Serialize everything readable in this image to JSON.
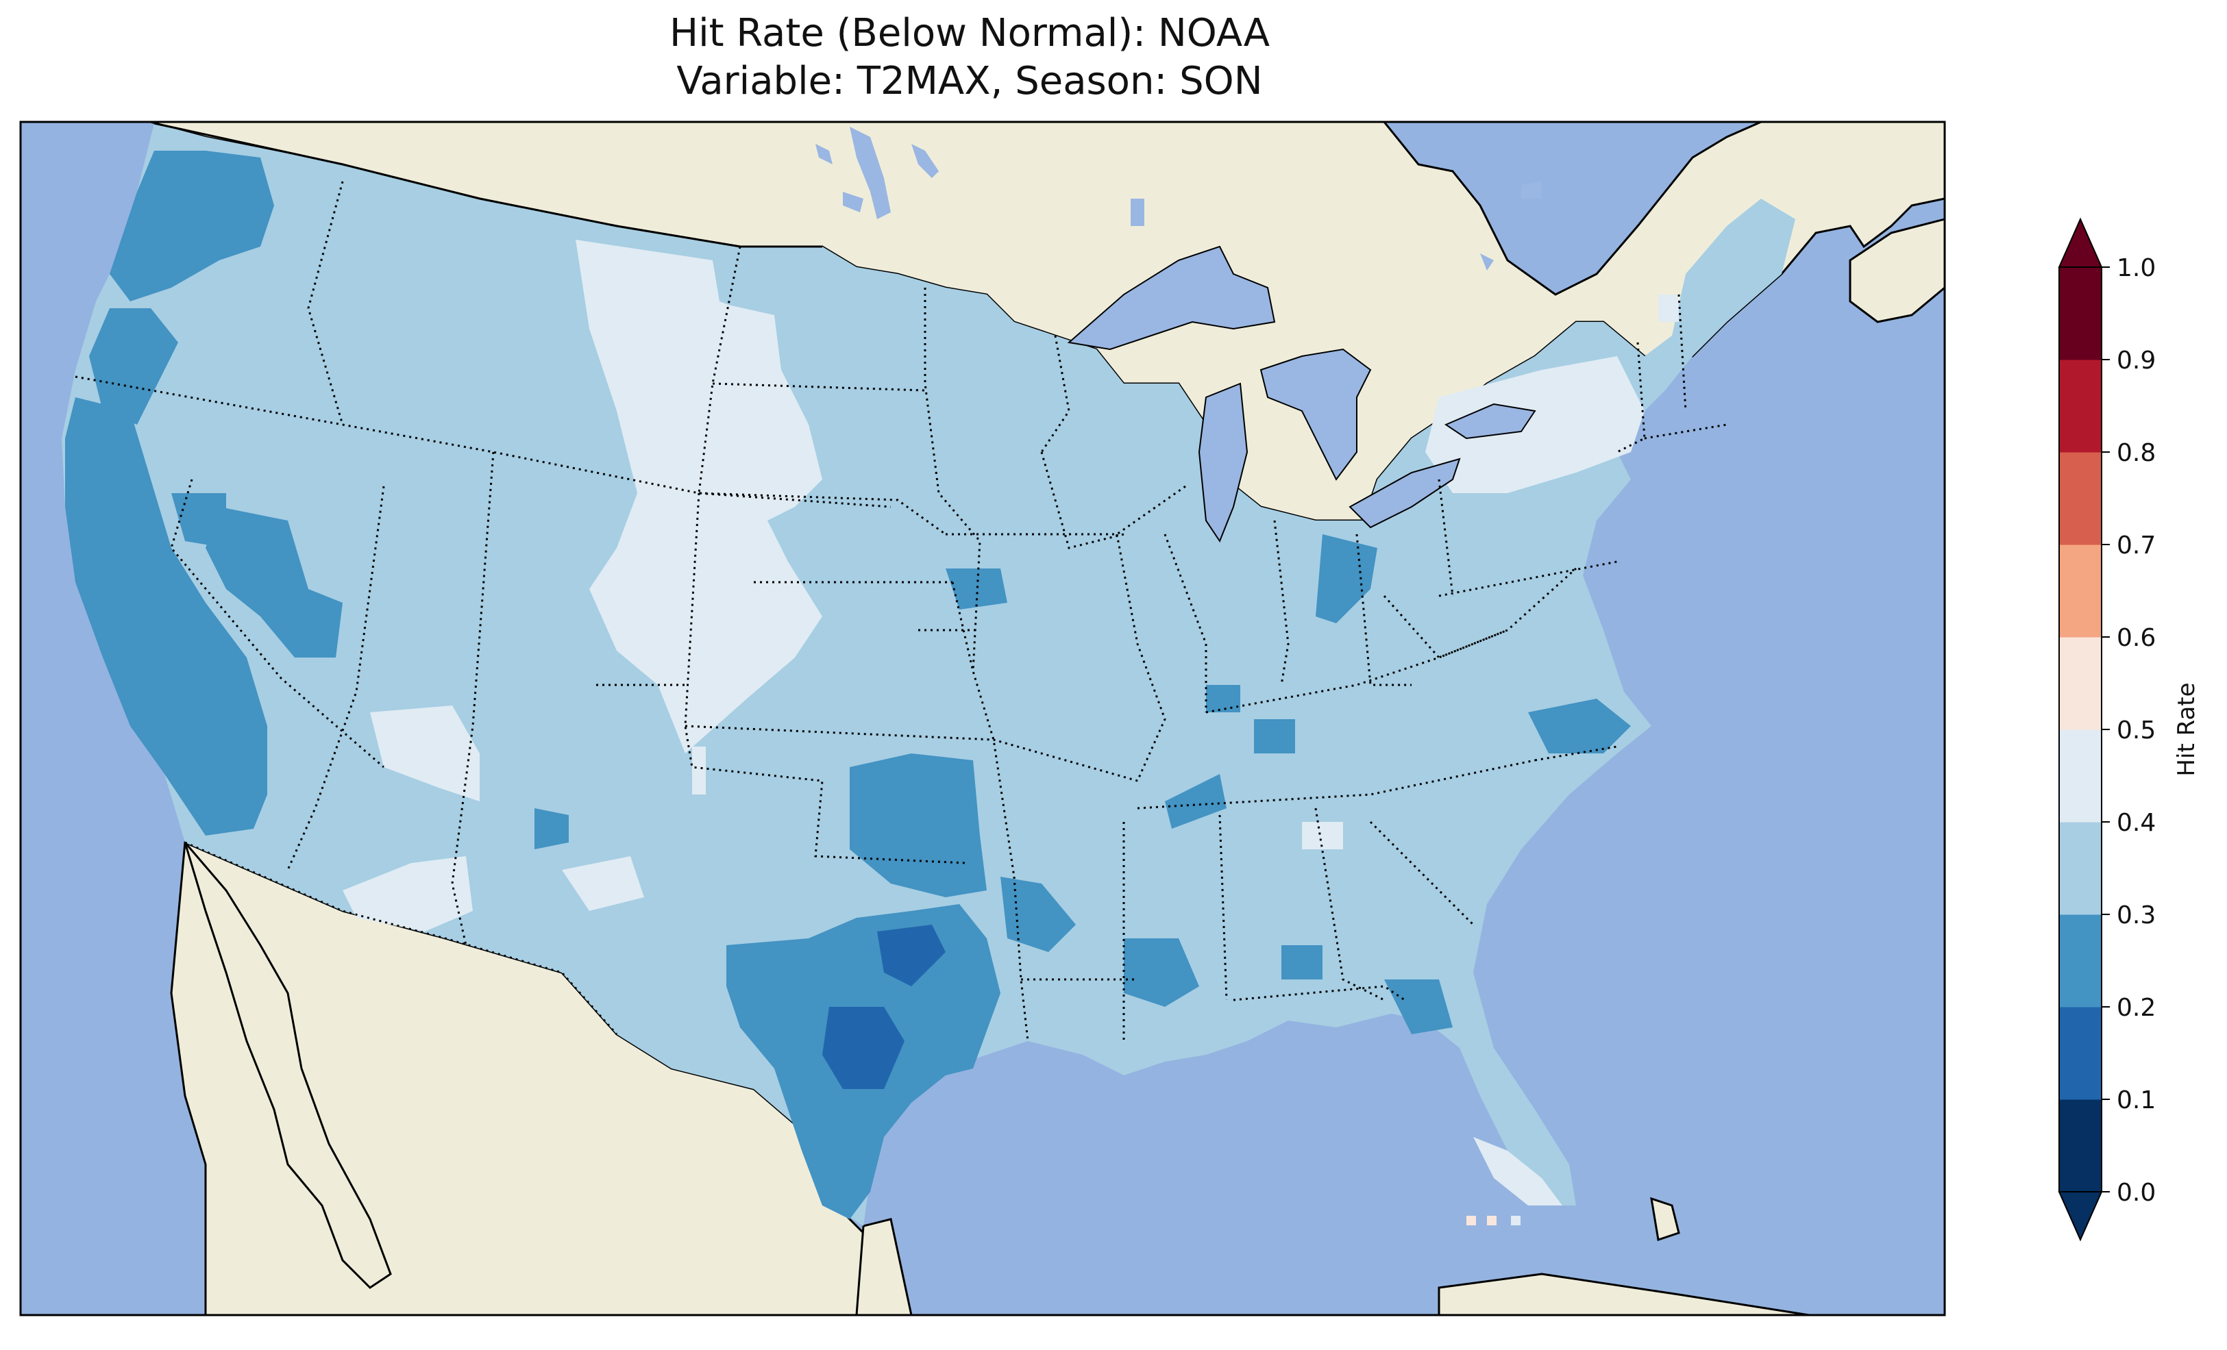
{
  "title_line1": "Hit Rate (Below Normal): NOAA",
  "title_line2": "Variable: T2MAX, Season: SON",
  "colors": {
    "ocean": "#94b3e0",
    "land": "#efedda",
    "lakes": "#9ab6e2",
    "bin_0_0.1": "#053061",
    "bin_0.1_0.2": "#2166ac",
    "bin_0.2_0.3": "#4393c3",
    "bin_0.3_0.4": "#a7cee3",
    "bin_0.4_0.5": "#e0ebf3",
    "bin_0.5_0.6": "#f8e6dc",
    "bin_0.6_0.7": "#f4a582",
    "bin_0.7_0.8": "#d6604d",
    "bin_0.8_0.9": "#b2182b",
    "bin_0.9_1.0": "#67001f"
  },
  "colorbar": {
    "label": "Hit Rate",
    "ticks": [
      "0.0",
      "0.1",
      "0.2",
      "0.3",
      "0.4",
      "0.5",
      "0.6",
      "0.7",
      "0.8",
      "0.9",
      "1.0"
    ],
    "colors": [
      "#053061",
      "#2166ac",
      "#4393c3",
      "#a7cee3",
      "#e0ebf3",
      "#f8e6dc",
      "#f4a582",
      "#d6604d",
      "#b2182b",
      "#67001f"
    ],
    "extend": "both"
  }
}
